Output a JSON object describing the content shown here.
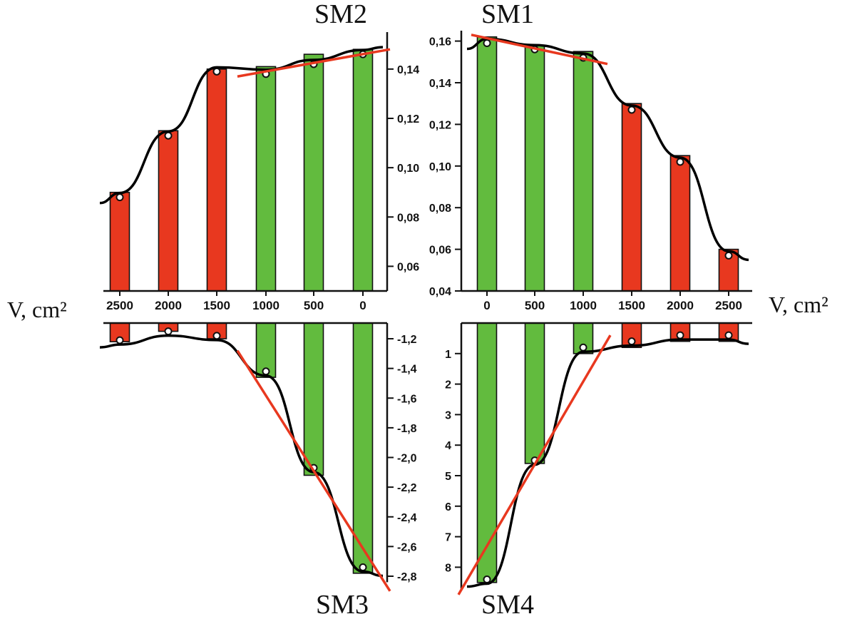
{
  "colors": {
    "bar_high": "#62bb3e",
    "bar_low": "#e8381f",
    "fit_line": "#e8381f",
    "trend_curve": "#000000",
    "marker": "#ffffff"
  },
  "x_axis_label": "V, cm²",
  "chart_data": [
    {
      "type": "bar",
      "title": "SM2",
      "categories": [
        "2500",
        "2000",
        "1500",
        "1000",
        "500",
        "0"
      ],
      "values": [
        0.09,
        0.115,
        0.14,
        0.141,
        0.146,
        0.148
      ],
      "markers": [
        0.088,
        0.113,
        0.139,
        0.138,
        0.142,
        0.146
      ],
      "bar_colors": [
        "red",
        "red",
        "red",
        "green",
        "green",
        "green"
      ],
      "ylim": [
        0.05,
        0.155
      ],
      "yticks": [
        0.06,
        0.08,
        0.1,
        0.12,
        0.14
      ],
      "ytick_labels": [
        "0,06",
        "0,08",
        "0,10",
        "0,12",
        "0,14"
      ],
      "xlabel": "V, cm²",
      "ylabel": "",
      "grid": false,
      "fit_line": {
        "from_category": "1000",
        "to_category": "0",
        "from_value": 0.137,
        "to_value": 0.148
      }
    },
    {
      "type": "bar",
      "title": "SM1",
      "categories": [
        "0",
        "500",
        "1000",
        "1500",
        "2000",
        "2500"
      ],
      "values": [
        0.162,
        0.158,
        0.155,
        0.13,
        0.105,
        0.06
      ],
      "markers": [
        0.159,
        0.156,
        0.152,
        0.127,
        0.102,
        0.057
      ],
      "bar_colors": [
        "green",
        "green",
        "green",
        "red",
        "red",
        "red"
      ],
      "ylim": [
        0.04,
        0.165
      ],
      "yticks": [
        0.04,
        0.06,
        0.08,
        0.1,
        0.12,
        0.14,
        0.16
      ],
      "ytick_labels": [
        "0,04",
        "0,06",
        "0,08",
        "0,10",
        "0,12",
        "0,14",
        "0,16"
      ],
      "xlabel": "V, cm²",
      "ylabel": "",
      "grid": false,
      "fit_line": {
        "from_category": "0",
        "to_category": "1000",
        "from_value": 0.163,
        "to_value": 0.149
      }
    },
    {
      "type": "bar",
      "title": "SM3",
      "categories": [
        "2500",
        "2000",
        "1500",
        "1000",
        "500",
        "0"
      ],
      "values": [
        -1.22,
        -1.15,
        -1.2,
        -1.46,
        -2.12,
        -2.78
      ],
      "markers": [
        -1.21,
        -1.15,
        -1.18,
        -1.42,
        -2.07,
        -2.74
      ],
      "bar_colors": [
        "red",
        "red",
        "red",
        "green",
        "green",
        "green"
      ],
      "ylim": [
        -2.84,
        -1.1
      ],
      "yticks": [
        -1.2,
        -1.4,
        -1.6,
        -1.8,
        -2.0,
        -2.2,
        -2.4,
        -2.6,
        -2.8
      ],
      "ytick_labels": [
        "-1,2",
        "-1,4",
        "-1,6",
        "-1,8",
        "-2,0",
        "-2,2",
        "-2,4",
        "-2,6",
        "-2,8"
      ],
      "xlabel": "",
      "ylabel": "",
      "grid": false,
      "fit_line": {
        "from_category": "1000",
        "to_category": "0",
        "from_value": -1.28,
        "to_value": -2.9
      }
    },
    {
      "type": "bar",
      "title": "SM4",
      "categories": [
        "0",
        "500",
        "1000",
        "1500",
        "2000",
        "2500"
      ],
      "values": [
        8.5,
        4.6,
        1.0,
        0.8,
        0.6,
        0.6
      ],
      "markers": [
        8.4,
        4.5,
        0.8,
        0.6,
        0.4,
        0.4
      ],
      "bar_colors": [
        "green",
        "green",
        "green",
        "red",
        "red",
        "red"
      ],
      "ylim": [
        0,
        8.7
      ],
      "yticks": [
        1,
        2,
        3,
        4,
        5,
        6,
        7,
        8
      ],
      "ytick_labels": [
        "1",
        "2",
        "3",
        "4",
        "5",
        "6",
        "7",
        "8"
      ],
      "xlabel": "",
      "ylabel": "",
      "grid": false,
      "fit_line": {
        "from_category": "0",
        "to_category": "1000",
        "from_value": 8.9,
        "to_value": 0.4
      }
    }
  ]
}
